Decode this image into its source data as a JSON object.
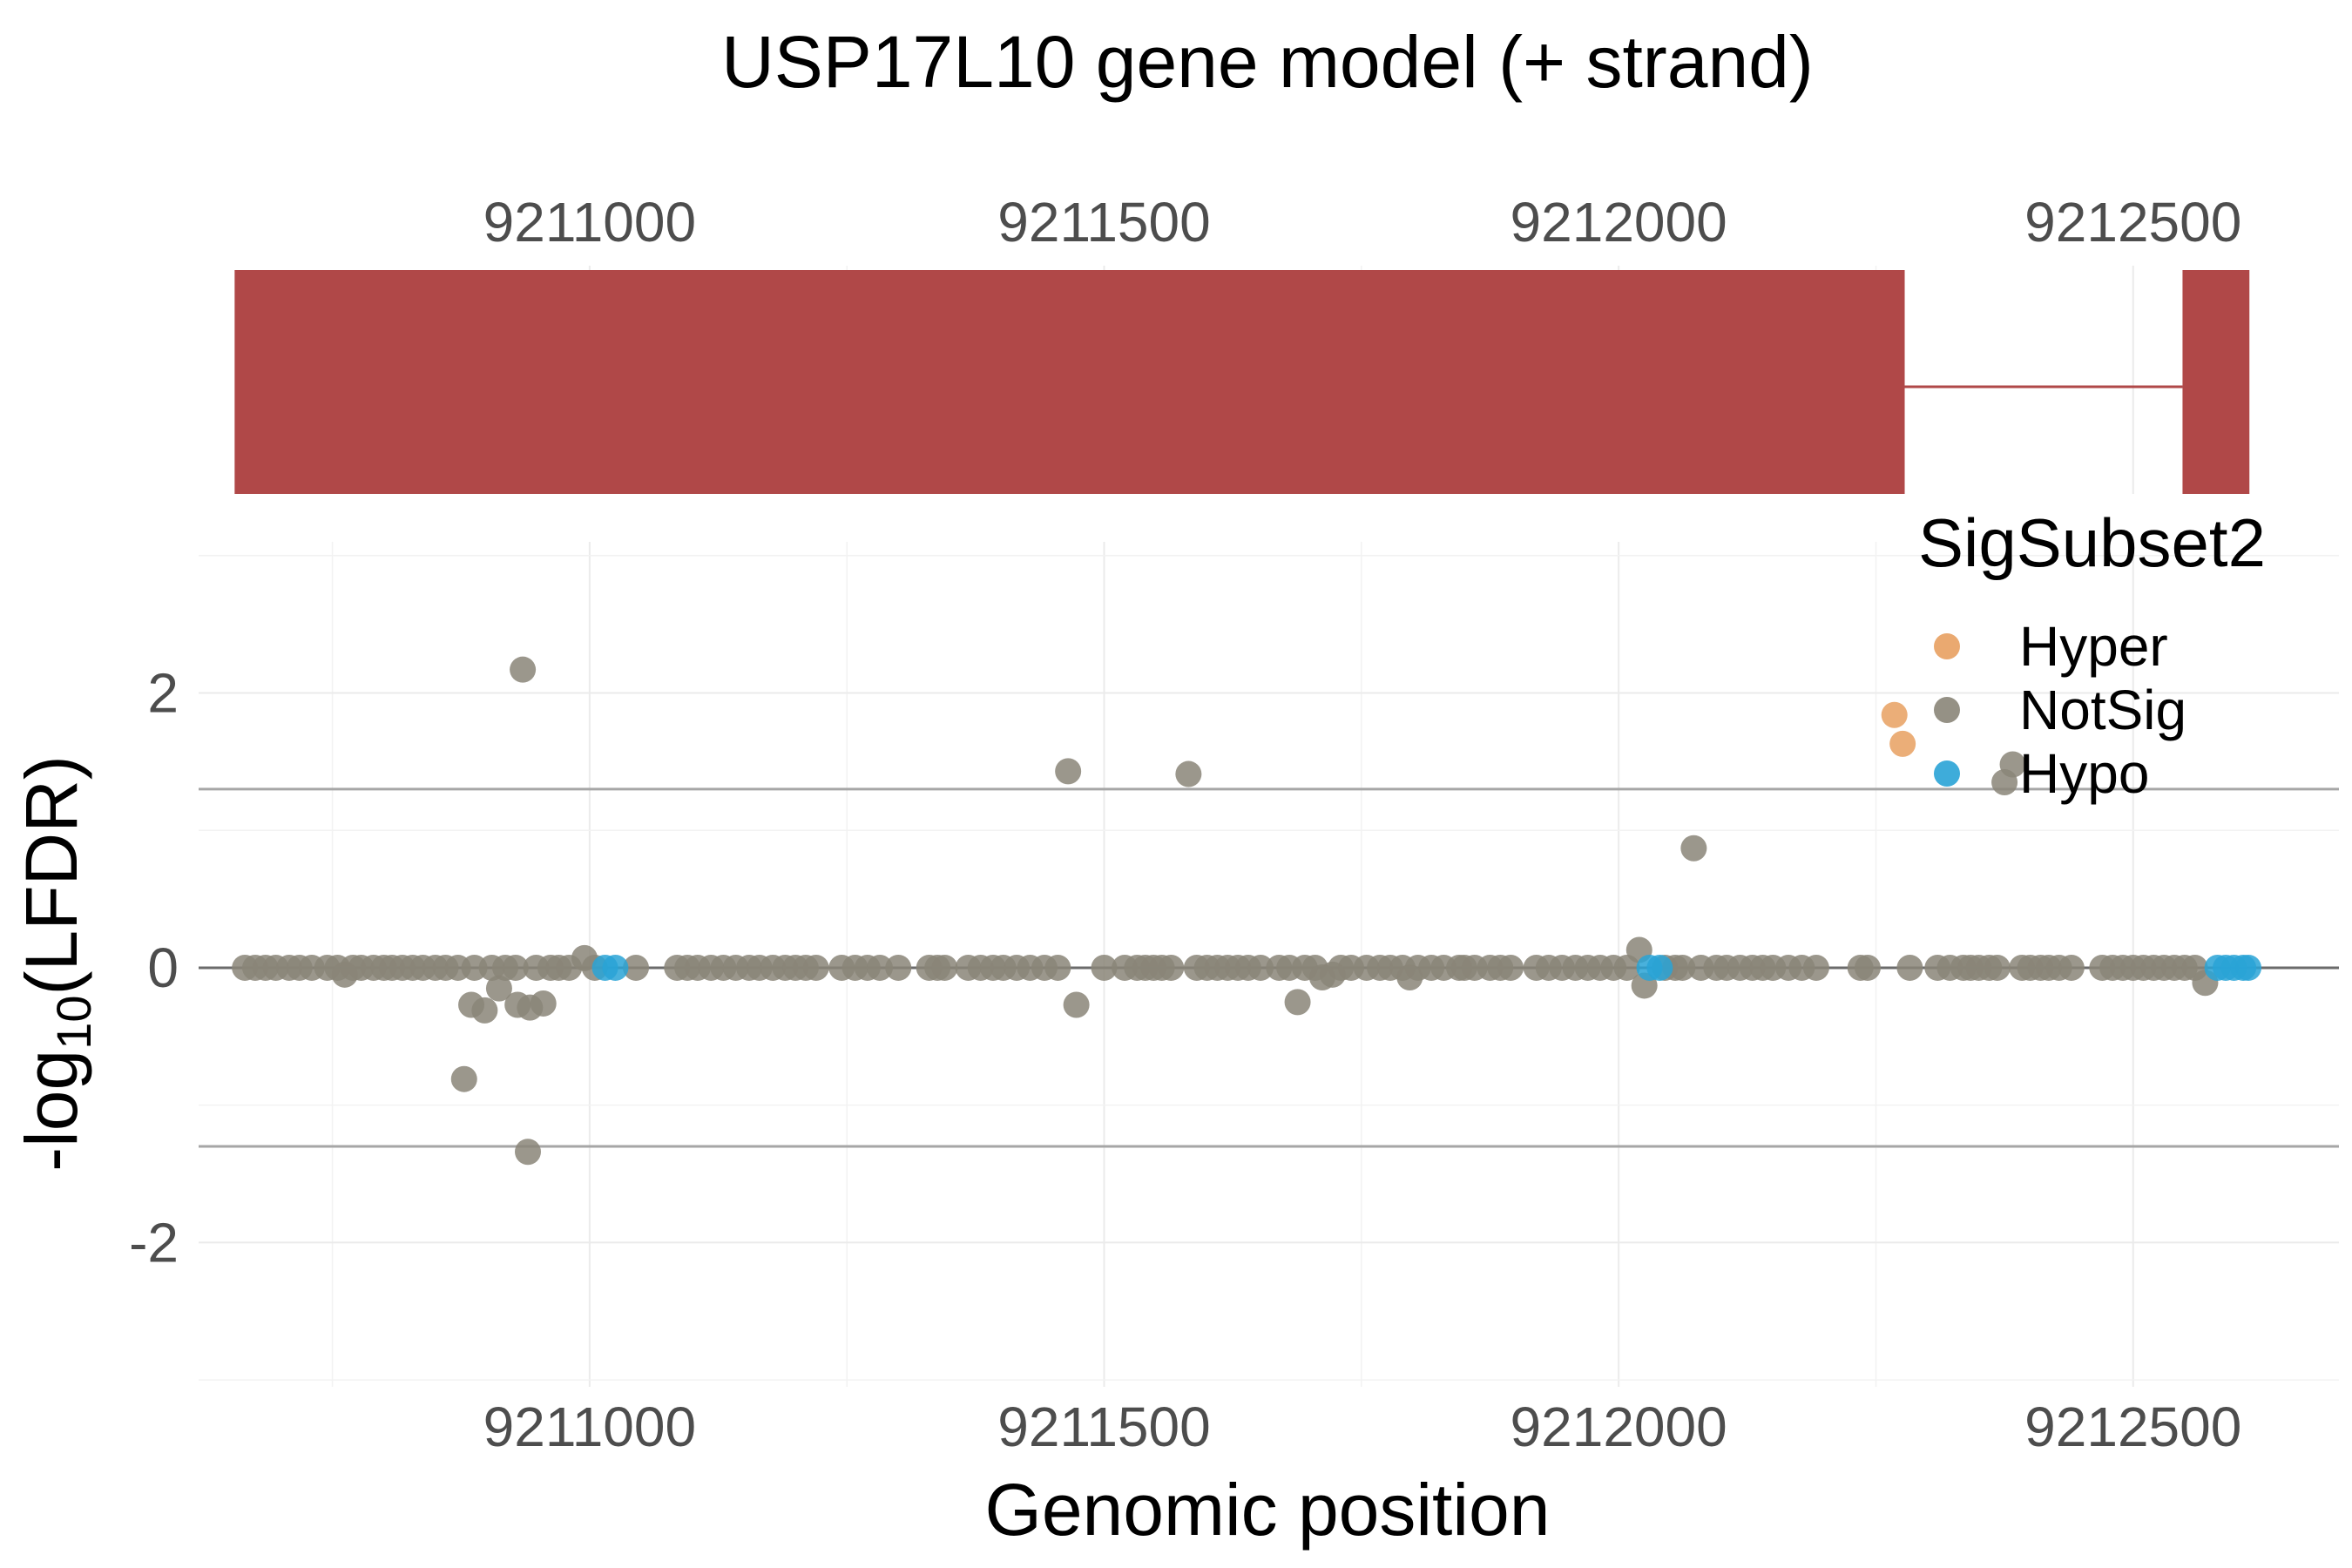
{
  "chart_data": [
    {
      "type": "gene_model",
      "title": "USP17L10 gene model (+ strand)",
      "x_ticks": [
        9211000,
        9211500,
        9212000,
        9212500
      ],
      "x_tick_labels": [
        "9211000",
        "9211500",
        "9212000",
        "9212500"
      ],
      "xlim": [
        9210620,
        9212700
      ],
      "exons": [
        [
          9210655,
          9212278
        ],
        [
          9212548,
          9212613
        ]
      ],
      "introns": [
        [
          9212278,
          9212548
        ]
      ],
      "colors": {
        "exon": "#b04848",
        "intron": "#b04848"
      }
    },
    {
      "type": "scatter",
      "xlabel": "Genomic position",
      "ylabel_prefix": "-log",
      "ylabel_sub": "10",
      "ylabel_suffix": "(LFDR)",
      "xlim": [
        9210620,
        9212700
      ],
      "ylim": [
        -3.05,
        3.1
      ],
      "x_ticks": [
        9211000,
        9211500,
        9212000,
        9212500
      ],
      "x_tick_labels": [
        "9211000",
        "9211500",
        "9212000",
        "9212500"
      ],
      "y_ticks": [
        2,
        0,
        -2
      ],
      "y_tick_labels": [
        "2",
        "0",
        "-2"
      ],
      "grid": true,
      "reference_lines": [
        1.3,
        -1.3
      ],
      "legend": {
        "title": "SigSubset2",
        "position": "top-right",
        "entries": [
          "Hyper",
          "NotSig",
          "Hypo"
        ]
      },
      "colors": {
        "Hyper": "#e8a060",
        "NotSig": "#8a8578",
        "Hypo": "#29a3d6"
      },
      "series": [
        {
          "name": "Hyper",
          "points": [
            [
              9212268,
              1.84
            ],
            [
              9212276,
              1.63
            ]
          ]
        },
        {
          "name": "Hypo",
          "points": [
            [
              9211015,
              0
            ],
            [
              9211025,
              0
            ],
            [
              9212030,
              0
            ],
            [
              9212040,
              0
            ],
            [
              9212582,
              0
            ],
            [
              9212590,
              0
            ],
            [
              9212598,
              0
            ],
            [
              9212607,
              0
            ],
            [
              9212612,
              0
            ]
          ]
        },
        {
          "name": "NotSig",
          "points": [
            [
              9210935,
              2.17
            ],
            [
              9211465,
              1.43
            ],
            [
              9211582,
              1.41
            ],
            [
              9212375,
              1.35
            ],
            [
              9212383,
              1.48
            ],
            [
              9212073,
              0.87
            ],
            [
              9210878,
              -0.81
            ],
            [
              9210940,
              -1.34
            ],
            [
              9210885,
              -0.27
            ],
            [
              9210898,
              -0.31
            ],
            [
              9210912,
              -0.15
            ],
            [
              9210930,
              -0.27
            ],
            [
              9210942,
              -0.29
            ],
            [
              9210955,
              -0.26
            ],
            [
              9210762,
              -0.05
            ],
            [
              9211473,
              -0.27
            ],
            [
              9211688,
              -0.25
            ],
            [
              9211712,
              -0.07
            ],
            [
              9211722,
              -0.05
            ],
            [
              9211797,
              -0.07
            ],
            [
              9212025,
              -0.13
            ],
            [
              9212570,
              -0.11
            ],
            [
              9210995,
              0.07
            ],
            [
              9212020,
              0.13
            ],
            [
              9210665,
              0
            ],
            [
              9210675,
              0
            ],
            [
              9210685,
              0
            ],
            [
              9210695,
              0
            ],
            [
              9210708,
              0
            ],
            [
              9210718,
              0
            ],
            [
              9210730,
              0
            ],
            [
              9210745,
              0
            ],
            [
              9210755,
              0
            ],
            [
              9210770,
              0
            ],
            [
              9210778,
              0
            ],
            [
              9210790,
              0
            ],
            [
              9210800,
              0
            ],
            [
              9210808,
              0
            ],
            [
              9210818,
              0
            ],
            [
              9210828,
              0
            ],
            [
              9210838,
              0
            ],
            [
              9210850,
              0
            ],
            [
              9210860,
              0
            ],
            [
              9210872,
              0
            ],
            [
              9210888,
              0
            ],
            [
              9210905,
              0
            ],
            [
              9210918,
              0
            ],
            [
              9210928,
              0
            ],
            [
              9210948,
              0
            ],
            [
              9210962,
              0
            ],
            [
              9210970,
              0
            ],
            [
              9210980,
              0
            ],
            [
              9211005,
              0
            ],
            [
              9211045,
              0
            ],
            [
              9211085,
              0
            ],
            [
              9211095,
              0
            ],
            [
              9211105,
              0
            ],
            [
              9211118,
              0
            ],
            [
              9211130,
              0
            ],
            [
              9211142,
              0
            ],
            [
              9211155,
              0
            ],
            [
              9211165,
              0
            ],
            [
              9211178,
              0
            ],
            [
              9211190,
              0
            ],
            [
              9211200,
              0
            ],
            [
              9211210,
              0
            ],
            [
              9211220,
              0
            ],
            [
              9211245,
              0
            ],
            [
              9211258,
              0
            ],
            [
              9211270,
              0
            ],
            [
              9211282,
              0
            ],
            [
              9211300,
              0
            ],
            [
              9211330,
              0
            ],
            [
              9211338,
              0
            ],
            [
              9211345,
              0
            ],
            [
              9211368,
              0
            ],
            [
              9211380,
              0
            ],
            [
              9211392,
              0
            ],
            [
              9211402,
              0
            ],
            [
              9211415,
              0
            ],
            [
              9211428,
              0
            ],
            [
              9211442,
              0
            ],
            [
              9211455,
              0
            ],
            [
              9211500,
              0
            ],
            [
              9211520,
              0
            ],
            [
              9211532,
              0
            ],
            [
              9211540,
              0
            ],
            [
              9211548,
              0
            ],
            [
              9211556,
              0
            ],
            [
              9211565,
              0
            ],
            [
              9211590,
              0
            ],
            [
              9211600,
              0
            ],
            [
              9211610,
              0
            ],
            [
              9211620,
              0
            ],
            [
              9211630,
              0
            ],
            [
              9211640,
              0
            ],
            [
              9211652,
              0
            ],
            [
              9211670,
              0
            ],
            [
              9211680,
              0
            ],
            [
              9211695,
              0
            ],
            [
              9211705,
              0
            ],
            [
              9211730,
              0
            ],
            [
              9211740,
              0
            ],
            [
              9211755,
              0
            ],
            [
              9211768,
              0
            ],
            [
              9211778,
              0
            ],
            [
              9211790,
              0
            ],
            [
              9211805,
              0
            ],
            [
              9211818,
              0
            ],
            [
              9211830,
              0
            ],
            [
              9211845,
              0
            ],
            [
              9211850,
              0
            ],
            [
              9211860,
              0
            ],
            [
              9211875,
              0
            ],
            [
              9211885,
              0
            ],
            [
              9211895,
              0
            ],
            [
              9211920,
              0
            ],
            [
              9211932,
              0
            ],
            [
              9211945,
              0
            ],
            [
              9211958,
              0
            ],
            [
              9211970,
              0
            ],
            [
              9211982,
              0
            ],
            [
              9211995,
              0
            ],
            [
              9212008,
              0
            ],
            [
              9212045,
              0
            ],
            [
              9212055,
              0
            ],
            [
              9212062,
              0
            ],
            [
              9212080,
              0
            ],
            [
              9212095,
              0
            ],
            [
              9212105,
              0
            ],
            [
              9212118,
              0
            ],
            [
              9212130,
              0
            ],
            [
              9212140,
              0
            ],
            [
              9212150,
              0
            ],
            [
              9212165,
              0
            ],
            [
              9212178,
              0
            ],
            [
              9212192,
              0
            ],
            [
              9212235,
              0
            ],
            [
              9212242,
              0
            ],
            [
              9212283,
              0
            ],
            [
              9212310,
              0
            ],
            [
              9212322,
              0
            ],
            [
              9212335,
              0
            ],
            [
              9212342,
              0
            ],
            [
              9212350,
              0
            ],
            [
              9212360,
              0
            ],
            [
              9212368,
              0
            ],
            [
              9212392,
              0
            ],
            [
              9212400,
              0
            ],
            [
              9212410,
              0
            ],
            [
              9212418,
              0
            ],
            [
              9212428,
              0
            ],
            [
              9212440,
              0
            ],
            [
              9212470,
              0
            ],
            [
              9212480,
              0
            ],
            [
              9212490,
              0
            ],
            [
              9212500,
              0
            ],
            [
              9212510,
              0
            ],
            [
              9212520,
              0
            ],
            [
              9212530,
              0
            ],
            [
              9212540,
              0
            ],
            [
              9212550,
              0
            ],
            [
              9212560,
              0
            ]
          ]
        }
      ]
    }
  ]
}
